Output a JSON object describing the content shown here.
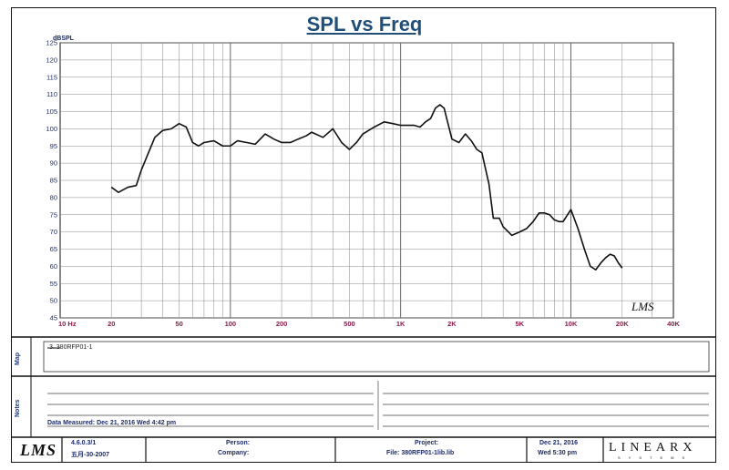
{
  "header": {
    "title": "SPL vs Freq"
  },
  "chart_data": {
    "type": "line",
    "title": "SPL vs Freq",
    "ylabel": "dBSPL",
    "xscale": "log",
    "xlim": [
      10,
      40000
    ],
    "ylim": [
      45,
      125
    ],
    "yticks": [
      45,
      50,
      55,
      60,
      65,
      70,
      75,
      80,
      85,
      90,
      95,
      100,
      105,
      110,
      115,
      120,
      125
    ],
    "xticks": [
      {
        "value": 10,
        "label": "10  Hz"
      },
      {
        "value": 20,
        "label": "20"
      },
      {
        "value": 50,
        "label": "50"
      },
      {
        "value": 100,
        "label": "100"
      },
      {
        "value": 200,
        "label": "200"
      },
      {
        "value": 500,
        "label": "500"
      },
      {
        "value": 1000,
        "label": "1K"
      },
      {
        "value": 2000,
        "label": "2K"
      },
      {
        "value": 5000,
        "label": "5K"
      },
      {
        "value": 10000,
        "label": "10K"
      },
      {
        "value": 20000,
        "label": "20K"
      },
      {
        "value": 40000,
        "label": "40K"
      }
    ],
    "grid": true,
    "series": [
      {
        "name": "3. 380RFP01-1",
        "color": "#111111",
        "x": [
          20,
          22,
          25,
          28,
          30,
          33,
          36,
          40,
          45,
          50,
          55,
          60,
          65,
          70,
          80,
          90,
          100,
          110,
          125,
          140,
          160,
          180,
          200,
          225,
          250,
          280,
          300,
          350,
          400,
          450,
          500,
          550,
          600,
          700,
          800,
          900,
          1000,
          1100,
          1200,
          1300,
          1400,
          1500,
          1600,
          1700,
          1800,
          2000,
          2200,
          2400,
          2600,
          2800,
          3000,
          3300,
          3500,
          3800,
          4000,
          4500,
          5000,
          5500,
          6000,
          6500,
          7000,
          7500,
          8000,
          8500,
          9000,
          10000,
          11000,
          12000,
          13000,
          14000,
          15000,
          16000,
          17000,
          18000,
          19000,
          20000
        ],
        "y": [
          83,
          81.5,
          83,
          83.5,
          88,
          93,
          97.5,
          99.5,
          100,
          101.5,
          100.5,
          96,
          95,
          96,
          96.5,
          95,
          95,
          96.5,
          96,
          95.5,
          98.5,
          97,
          96,
          96,
          97,
          98,
          99,
          97.5,
          100,
          96,
          94,
          96,
          98.5,
          100.5,
          102,
          101.5,
          101,
          101,
          101,
          100.5,
          102,
          103,
          106,
          107,
          106,
          97,
          96,
          98.5,
          96.5,
          94,
          93,
          84,
          74,
          74,
          71.5,
          69,
          70,
          71,
          73,
          75.5,
          75.5,
          75,
          73.5,
          73,
          73,
          76.5,
          71,
          65,
          60,
          59,
          61,
          62.5,
          63.5,
          63,
          61,
          59.5
        ]
      }
    ]
  },
  "chart_logo": "LMS",
  "map": {
    "label": "Map",
    "legend_entry": "3. 380RFP01-1"
  },
  "notes": {
    "label": "Notes",
    "measured": "Data Measured: Dec 21, 2016  Wed  4:42 pm"
  },
  "footer": {
    "logo": "LMS",
    "version": "4.6.0.3/1",
    "version_date": "五月-30-2007",
    "person_label": "Person:",
    "company_label": "Company:",
    "project_label": "Project:",
    "file_label": "File: 380RFP01-1lib.lib",
    "date": "Dec 21, 2016",
    "time": "Wed  5:30 pm",
    "brand": "LINEARX",
    "brand_sub": "SYSTEMS"
  }
}
